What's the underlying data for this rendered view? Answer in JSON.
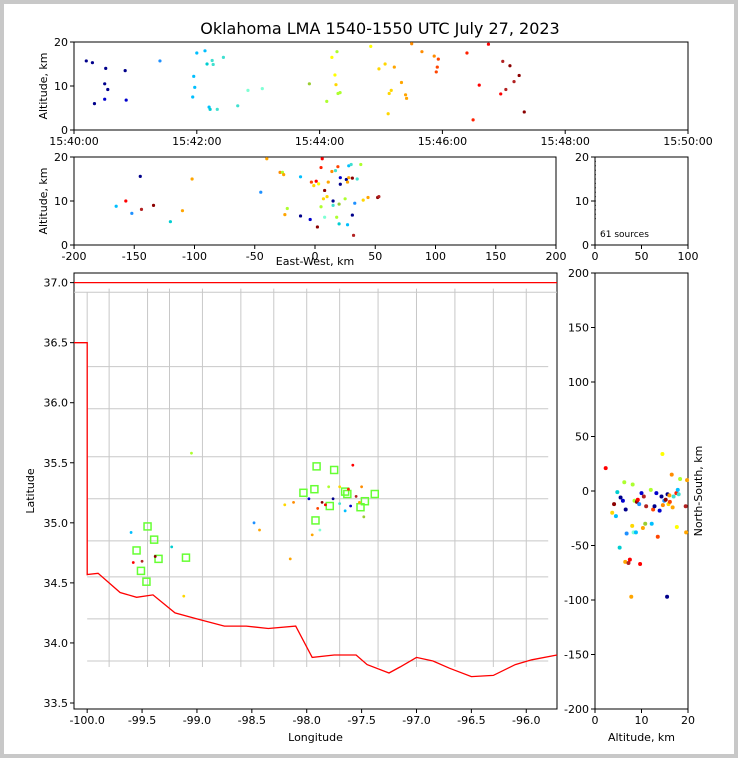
{
  "title": "Oklahoma LMA 1540-1550 UTC July 27, 2023",
  "colors": {
    "county": "#c8c8c8",
    "border": "#ff0000",
    "station": "#66ff33"
  },
  "chart_data": [
    {
      "id": "time_height",
      "type": "scatter",
      "xlabel": "",
      "ylabel": "Altitude, km",
      "xlim": [
        0,
        600
      ],
      "ylim": [
        0,
        20
      ],
      "xticks": [
        {
          "v": 0,
          "t": "15:40:00"
        },
        {
          "v": 120,
          "t": "15:42:00"
        },
        {
          "v": 240,
          "t": "15:44:00"
        },
        {
          "v": 360,
          "t": "15:46:00"
        },
        {
          "v": 480,
          "t": "15:48:00"
        },
        {
          "v": 600,
          "t": "15:50:00"
        }
      ],
      "yticks": [
        0,
        10,
        20
      ],
      "points": [
        [
          12,
          15.7,
          "#00008b"
        ],
        [
          18,
          15.3,
          "#00008b"
        ],
        [
          20,
          6.0,
          "#00008b"
        ],
        [
          30,
          10.5,
          "#00008b"
        ],
        [
          31,
          14,
          "#00008b"
        ],
        [
          30,
          7.0,
          "#0000cd"
        ],
        [
          33,
          9.2,
          "#00008b"
        ],
        [
          50,
          13.5,
          "#00008b"
        ],
        [
          51,
          6.8,
          "#0000cd"
        ],
        [
          84,
          15.7,
          "#1e90ff"
        ],
        [
          116,
          7.5,
          "#00bfff"
        ],
        [
          117,
          12.2,
          "#00bfff"
        ],
        [
          118,
          9.7,
          "#00bfff"
        ],
        [
          120,
          17.5,
          "#00bfff"
        ],
        [
          128,
          18,
          "#00bfff"
        ],
        [
          130,
          15,
          "#00ced1"
        ],
        [
          132,
          5.2,
          "#00bfff"
        ],
        [
          133,
          4.7,
          "#00ced1"
        ],
        [
          135,
          15.8,
          "#40e0d0"
        ],
        [
          136,
          14.9,
          "#40e0d0"
        ],
        [
          140,
          4.7,
          "#40e0d0"
        ],
        [
          146,
          16.5,
          "#40e0d0"
        ],
        [
          160,
          5.5,
          "#40e0d0"
        ],
        [
          170,
          9,
          "#7fffd4"
        ],
        [
          184,
          9.4,
          "#7fffd4"
        ],
        [
          230,
          10.5,
          "#9acd32"
        ],
        [
          247,
          6.5,
          "#adff2f"
        ],
        [
          252,
          16.5,
          "#ffff00"
        ],
        [
          255,
          12.5,
          "#ffff00"
        ],
        [
          256,
          10.3,
          "#ffd700"
        ],
        [
          257,
          17.8,
          "#adff2f"
        ],
        [
          258,
          8.3,
          "#adff2f"
        ],
        [
          260,
          8.5,
          "#adff2f"
        ],
        [
          290,
          19,
          "#ffff00"
        ],
        [
          298,
          13.9,
          "#ffd700"
        ],
        [
          304,
          15,
          "#ffd700"
        ],
        [
          307,
          3.7,
          "#ffd700"
        ],
        [
          308,
          8.3,
          "#ffd700"
        ],
        [
          310,
          9.0,
          "#ffd700"
        ],
        [
          313,
          14.3,
          "#ffa500"
        ],
        [
          320,
          10.8,
          "#ffa500"
        ],
        [
          324,
          8,
          "#ffa500"
        ],
        [
          325,
          7.2,
          "#ffa500"
        ],
        [
          330,
          19.6,
          "#ff8c00"
        ],
        [
          340,
          17.8,
          "#ff8c00"
        ],
        [
          352,
          16.8,
          "#ff8c00"
        ],
        [
          354,
          13.2,
          "#ff4500"
        ],
        [
          355,
          14.3,
          "#ff4500"
        ],
        [
          356,
          16.1,
          "#ff4500"
        ],
        [
          384,
          17.5,
          "#ff2000"
        ],
        [
          390,
          2.3,
          "#ff2000"
        ],
        [
          396,
          10.2,
          "#ff0000"
        ],
        [
          405,
          19.5,
          "#ff0000"
        ],
        [
          417,
          8.2,
          "#ff0000"
        ],
        [
          419,
          15.6,
          "#b22222"
        ],
        [
          422,
          9.2,
          "#b22222"
        ],
        [
          426,
          14.6,
          "#8b0000"
        ],
        [
          430,
          11,
          "#b22222"
        ],
        [
          435,
          12.4,
          "#8b0000"
        ],
        [
          440,
          4.1,
          "#8b0000"
        ]
      ]
    },
    {
      "id": "ew_height",
      "type": "scatter",
      "xlabel": "East-West, km",
      "ylabel": "Altitude, km",
      "xlim": [
        -200,
        200
      ],
      "ylim": [
        0,
        20
      ],
      "xticks": [
        -200,
        -150,
        -100,
        -50,
        0,
        50,
        100,
        150,
        200
      ],
      "yticks": [
        0,
        10,
        20
      ],
      "points": [
        [
          -165,
          8.8,
          "#00bfff"
        ],
        [
          -157,
          10,
          "#ff0000"
        ],
        [
          -152,
          7.2,
          "#1e90ff"
        ],
        [
          -145,
          15.6,
          "#00008b"
        ],
        [
          -144,
          8.1,
          "#b22222"
        ],
        [
          -134,
          9,
          "#8b0000"
        ],
        [
          -120,
          5.3,
          "#00ced1"
        ],
        [
          -110,
          7.8,
          "#ffa500"
        ],
        [
          -102,
          15,
          "#ffa500"
        ],
        [
          -45,
          12,
          "#1e90ff"
        ],
        [
          -40,
          19.6,
          "#ffa500"
        ],
        [
          -29,
          16.5,
          "#ff8c00"
        ],
        [
          -27,
          16.5,
          "#adff2f"
        ],
        [
          -26,
          16,
          "#ffa500"
        ],
        [
          -25,
          6.9,
          "#ffa500"
        ],
        [
          -23,
          8.3,
          "#adff2f"
        ],
        [
          -12,
          15.5,
          "#00bfff"
        ],
        [
          -12,
          6.6,
          "#00008b"
        ],
        [
          -4,
          5.8,
          "#0000cd"
        ],
        [
          -3,
          14.3,
          "#ff4500"
        ],
        [
          -1,
          13.5,
          "#ffd700"
        ],
        [
          1,
          14.5,
          "#ff0000"
        ],
        [
          2,
          4.1,
          "#8b0000"
        ],
        [
          3,
          13.9,
          "#ffff00"
        ],
        [
          5,
          17.6,
          "#ff2000"
        ],
        [
          5,
          8.7,
          "#adff2f"
        ],
        [
          6,
          19.6,
          "#ff0000"
        ],
        [
          7,
          10.5,
          "#ffd700"
        ],
        [
          8,
          6.3,
          "#7fffd4"
        ],
        [
          8,
          12.4,
          "#8b0000"
        ],
        [
          10,
          11,
          "#ffd700"
        ],
        [
          11,
          14.3,
          "#ffa500"
        ],
        [
          14,
          16.7,
          "#ff8c00"
        ],
        [
          15,
          9,
          "#40e0d0"
        ],
        [
          15,
          10,
          "#00008b"
        ],
        [
          17,
          16.9,
          "#40e0d0"
        ],
        [
          18,
          6.3,
          "#adff2f"
        ],
        [
          19,
          17.8,
          "#ff4500"
        ],
        [
          20,
          9.3,
          "#9acd32"
        ],
        [
          20,
          4.8,
          "#00ced1"
        ],
        [
          21,
          15.3,
          "#0000cd"
        ],
        [
          21,
          13.8,
          "#00008b"
        ],
        [
          25,
          10.5,
          "#adff2f"
        ],
        [
          26,
          14.9,
          "#00008b"
        ],
        [
          27,
          14.3,
          "#ffa500"
        ],
        [
          27,
          4.6,
          "#00bfff"
        ],
        [
          28,
          15.3,
          "#ffa500"
        ],
        [
          28,
          18,
          "#00bfff"
        ],
        [
          30,
          18.3,
          "#40e0d0"
        ],
        [
          31,
          15.2,
          "#8b0000"
        ],
        [
          31,
          6.8,
          "#00008b"
        ],
        [
          32,
          2.2,
          "#b22222"
        ],
        [
          33,
          9.5,
          "#1e90ff"
        ],
        [
          35,
          15,
          "#40e0d0"
        ],
        [
          38,
          18.3,
          "#adff2f"
        ],
        [
          40,
          10.2,
          "#ffd700"
        ],
        [
          44,
          10.8,
          "#ffa500"
        ],
        [
          52,
          10.8,
          "#8b0000"
        ],
        [
          53,
          11,
          "#b22222"
        ]
      ]
    },
    {
      "id": "histogram",
      "type": "scatter",
      "xlim": [
        0,
        100
      ],
      "ylim": [
        0,
        20
      ],
      "xticks": [
        0,
        50,
        100
      ],
      "yticks": [
        0,
        10,
        20
      ],
      "sources_label": "61 sources"
    },
    {
      "id": "plan_view",
      "type": "scatter",
      "xlabel": "Longitude",
      "ylabel": "Latitude",
      "xlim": [
        -100.12,
        -95.72
      ],
      "ylim": [
        33.45,
        37.08
      ],
      "xticks": [
        -100.0,
        -99.5,
        -99.0,
        -98.5,
        -98.0,
        -97.5,
        -97.0,
        -96.5,
        -96.0
      ],
      "yticks": [
        33.5,
        34.0,
        34.5,
        35.0,
        35.5,
        36.0,
        36.5,
        37.0
      ],
      "stations": [
        [
          -97.91,
          35.47
        ],
        [
          -97.75,
          35.44
        ],
        [
          -98.03,
          35.25
        ],
        [
          -97.93,
          35.28
        ],
        [
          -97.79,
          35.14
        ],
        [
          -97.63,
          35.24
        ],
        [
          -97.65,
          35.26
        ],
        [
          -97.47,
          35.18
        ],
        [
          -97.38,
          35.24
        ],
        [
          -97.51,
          35.13
        ],
        [
          -97.92,
          35.02
        ],
        [
          -99.45,
          34.97
        ],
        [
          -99.39,
          34.86
        ],
        [
          -99.55,
          34.77
        ],
        [
          -99.35,
          34.7
        ],
        [
          -99.51,
          34.6
        ],
        [
          -99.46,
          34.51
        ],
        [
          -99.1,
          34.71
        ]
      ],
      "points": [
        [
          -99.05,
          35.58,
          "#adff2f"
        ],
        [
          -99.6,
          34.92,
          "#00bfff"
        ],
        [
          -99.58,
          34.67,
          "#ff0000"
        ],
        [
          -99.5,
          34.68,
          "#b22222"
        ],
        [
          -99.38,
          34.72,
          "#8b0000"
        ],
        [
          -99.23,
          34.8,
          "#00ced1"
        ],
        [
          -99.12,
          34.39,
          "#ffd700"
        ],
        [
          -98.48,
          35.0,
          "#1e90ff"
        ],
        [
          -98.43,
          34.94,
          "#ffa500"
        ],
        [
          -98.15,
          34.7,
          "#ffa500"
        ],
        [
          -98.2,
          35.15,
          "#ffd700"
        ],
        [
          -98.12,
          35.17,
          "#ff8c00"
        ],
        [
          -97.98,
          35.2,
          "#0000cd"
        ],
        [
          -97.9,
          35.12,
          "#ff4500"
        ],
        [
          -97.86,
          35.17,
          "#8b0000"
        ],
        [
          -97.83,
          35.15,
          "#ff0000"
        ],
        [
          -97.8,
          35.3,
          "#adff2f"
        ],
        [
          -97.76,
          35.2,
          "#00008b"
        ],
        [
          -97.7,
          35.16,
          "#40e0d0"
        ],
        [
          -97.65,
          35.1,
          "#00bfff"
        ],
        [
          -97.62,
          35.28,
          "#ff2000"
        ],
        [
          -97.58,
          35.48,
          "#ff0000"
        ],
        [
          -97.55,
          35.22,
          "#b22222"
        ],
        [
          -97.52,
          35.17,
          "#ffa500"
        ],
        [
          -97.48,
          35.05,
          "#9acd32"
        ],
        [
          -97.5,
          35.3,
          "#ff8c00"
        ],
        [
          -97.95,
          34.9,
          "#ffa500"
        ],
        [
          -97.88,
          34.94,
          "#7fffd4"
        ],
        [
          -97.7,
          35.3,
          "#ffd700"
        ],
        [
          -97.6,
          35.14,
          "#0000cd"
        ]
      ]
    },
    {
      "id": "ns_height",
      "type": "scatter",
      "xlabel": "Altitude, km",
      "ylabel": "North-South, km",
      "xlim": [
        0,
        20
      ],
      "ylim": [
        -200,
        200
      ],
      "xticks": [
        0,
        10,
        20
      ],
      "yticks": [
        -200,
        -150,
        -100,
        -50,
        0,
        50,
        100,
        150,
        200
      ],
      "points": [
        [
          2.3,
          21,
          "#ff0000"
        ],
        [
          3.7,
          -20,
          "#ffd700"
        ],
        [
          4.1,
          -12,
          "#8b0000"
        ],
        [
          4.5,
          -23,
          "#00bfff"
        ],
        [
          4.8,
          -1,
          "#00ced1"
        ],
        [
          5.3,
          -52,
          "#00ced1"
        ],
        [
          5.5,
          -6,
          "#00008b"
        ],
        [
          6,
          -9,
          "#0000cd"
        ],
        [
          6.3,
          8,
          "#adff2f"
        ],
        [
          6.5,
          -65,
          "#ffa500"
        ],
        [
          6.6,
          -17,
          "#00008b"
        ],
        [
          6.8,
          -39,
          "#1e90ff"
        ],
        [
          7.2,
          -66,
          "#b22222"
        ],
        [
          7.5,
          -63,
          "#ff0000"
        ],
        [
          7.8,
          -97,
          "#ffa500"
        ],
        [
          8,
          -32,
          "#ffd700"
        ],
        [
          8.1,
          6,
          "#adff2f"
        ],
        [
          8.3,
          -38,
          "#7fffd4"
        ],
        [
          8.5,
          -9,
          "#adff2f"
        ],
        [
          8.8,
          -38,
          "#00bfff"
        ],
        [
          9,
          -10,
          "#8b0000"
        ],
        [
          9.2,
          -8,
          "#ff0000"
        ],
        [
          9.5,
          -12,
          "#1e90ff"
        ],
        [
          9.7,
          -67,
          "#ff0000"
        ],
        [
          10,
          -2,
          "#0000cd"
        ],
        [
          10.3,
          -34,
          "#ffa500"
        ],
        [
          10.5,
          -5,
          "#b22222"
        ],
        [
          10.8,
          -30,
          "#9acd32"
        ],
        [
          11,
          -14,
          "#b22222"
        ],
        [
          12,
          1,
          "#adff2f"
        ],
        [
          12.2,
          -30,
          "#00bfff"
        ],
        [
          12.5,
          -17,
          "#ff4500"
        ],
        [
          12.8,
          -14,
          "#00008b"
        ],
        [
          13.2,
          -2,
          "#0000cd"
        ],
        [
          13.5,
          -42,
          "#ff4500"
        ],
        [
          13.9,
          -18,
          "#0000cd"
        ],
        [
          14.3,
          -5,
          "#00008b"
        ],
        [
          14.5,
          34,
          "#ffff00"
        ],
        [
          14.6,
          -13,
          "#ff8c00"
        ],
        [
          14.9,
          -9,
          "#1e90ff"
        ],
        [
          15.2,
          -8,
          "#8b0000"
        ],
        [
          15.5,
          -97,
          "#00008b"
        ],
        [
          15.6,
          -3,
          "#00008b"
        ],
        [
          15.8,
          -12,
          "#ffd700"
        ],
        [
          16,
          -4,
          "#ffa500"
        ],
        [
          16.1,
          -10,
          "#ff4500"
        ],
        [
          16.5,
          15,
          "#ff8c00"
        ],
        [
          16.7,
          -15,
          "#ffa500"
        ],
        [
          16.9,
          -5,
          "#40e0d0"
        ],
        [
          17.5,
          -2,
          "#ff2000"
        ],
        [
          17.6,
          -33,
          "#ffff00"
        ],
        [
          17.8,
          1,
          "#00bfff"
        ],
        [
          18,
          -3,
          "#40e0d0"
        ],
        [
          18.3,
          11,
          "#adff2f"
        ],
        [
          19.5,
          -14,
          "#b22222"
        ],
        [
          19.6,
          -38,
          "#ffa500"
        ],
        [
          19.8,
          10,
          "#ffa500"
        ]
      ]
    }
  ]
}
